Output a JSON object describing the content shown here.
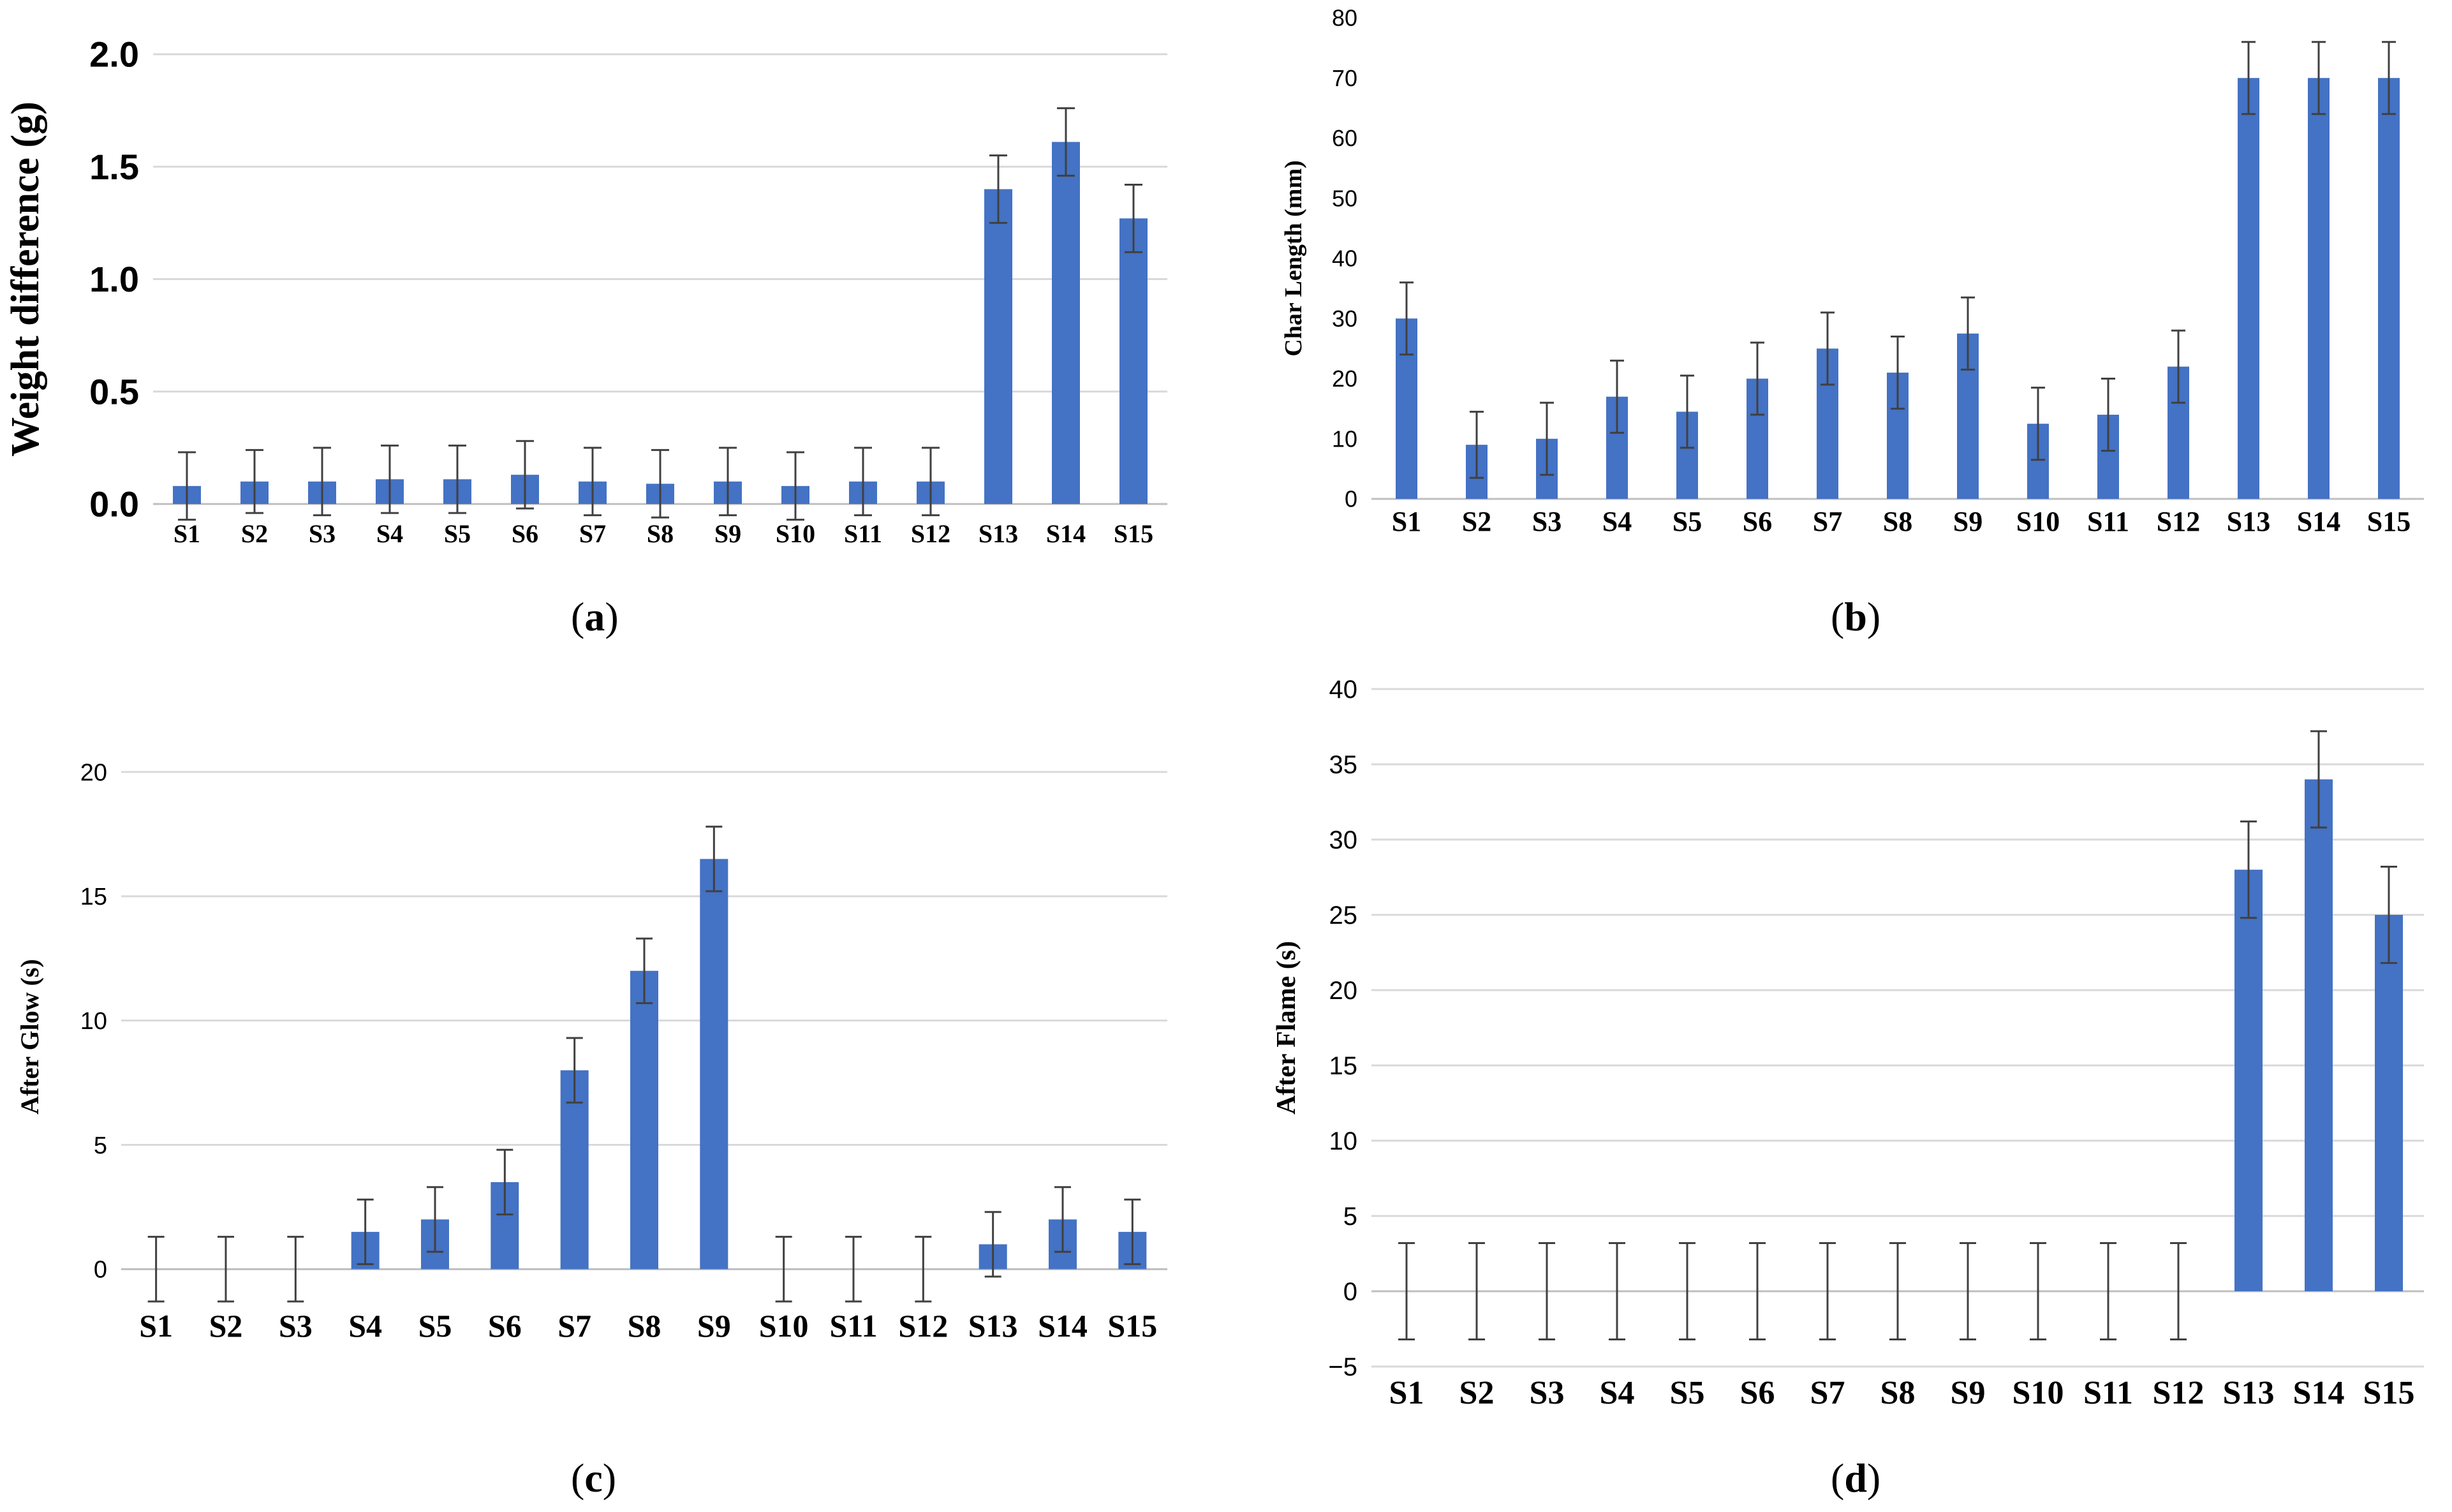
{
  "chart_data": [
    {
      "type": "bar",
      "panel_label": "a",
      "title": "",
      "xlabel": "",
      "ylabel": "Weight difference (g)",
      "categories": [
        "S1",
        "S2",
        "S3",
        "S4",
        "S5",
        "S6",
        "S7",
        "S8",
        "S9",
        "S10",
        "S11",
        "S12",
        "S13",
        "S14",
        "S15"
      ],
      "values": [
        0.08,
        0.1,
        0.1,
        0.11,
        0.11,
        0.13,
        0.1,
        0.09,
        0.1,
        0.08,
        0.1,
        0.1,
        1.4,
        1.61,
        1.27
      ],
      "error": [
        0.15,
        0.14,
        0.15,
        0.15,
        0.15,
        0.15,
        0.15,
        0.15,
        0.15,
        0.15,
        0.15,
        0.15,
        0.15,
        0.15,
        0.15
      ],
      "yticks": [
        "0.0",
        "0.5",
        "1.0",
        "1.5",
        "2.0"
      ],
      "ylim": [
        0,
        2.0
      ],
      "grid": true
    },
    {
      "type": "bar",
      "panel_label": "b",
      "title": "",
      "xlabel": "",
      "ylabel": "Char Length (mm)",
      "categories": [
        "S1",
        "S2",
        "S3",
        "S4",
        "S5",
        "S6",
        "S7",
        "S8",
        "S9",
        "S10",
        "S11",
        "S12",
        "S13",
        "S14",
        "S15"
      ],
      "values": [
        30,
        9,
        10,
        17,
        14.5,
        20,
        25,
        21,
        27.5,
        12.5,
        14,
        22,
        70,
        70,
        70
      ],
      "error": [
        6,
        5.5,
        6,
        6,
        6,
        6,
        6,
        6,
        6,
        6,
        6,
        6,
        6,
        6,
        6
      ],
      "yticks": [
        "0",
        "10",
        "20",
        "30",
        "40",
        "50",
        "60",
        "70",
        "80"
      ],
      "ylim": [
        0,
        80
      ],
      "grid": false
    },
    {
      "type": "bar",
      "panel_label": "c",
      "title": "",
      "xlabel": "",
      "ylabel": "After Glow (s)",
      "categories": [
        "S1",
        "S2",
        "S3",
        "S4",
        "S5",
        "S6",
        "S7",
        "S8",
        "S9",
        "S10",
        "S11",
        "S12",
        "S13",
        "S14",
        "S15"
      ],
      "values": [
        0,
        0,
        0,
        1.5,
        2,
        3.5,
        8,
        12,
        16.5,
        0,
        0,
        0,
        1,
        2,
        1.5
      ],
      "error": [
        1.3,
        1.3,
        1.3,
        1.3,
        1.3,
        1.3,
        1.3,
        1.3,
        1.3,
        1.3,
        1.3,
        1.3,
        1.3,
        1.3,
        1.3
      ],
      "yticks": [
        "0",
        "5",
        "10",
        "15",
        "20"
      ],
      "ylim": [
        -1.3,
        20
      ],
      "grid": true
    },
    {
      "type": "bar",
      "panel_label": "d",
      "title": "",
      "xlabel": "",
      "ylabel": "After Flame (s)",
      "categories": [
        "S1",
        "S2",
        "S3",
        "S4",
        "S5",
        "S6",
        "S7",
        "S8",
        "S9",
        "S10",
        "S11",
        "S12",
        "S13",
        "S14",
        "S15"
      ],
      "values": [
        0,
        0,
        0,
        0,
        0,
        0,
        0,
        0,
        0,
        0,
        0,
        0,
        28,
        34,
        25
      ],
      "error": [
        3.2,
        3.2,
        3.2,
        3.2,
        3.2,
        3.2,
        3.2,
        3.2,
        3.2,
        3.2,
        3.2,
        3.2,
        3.2,
        3.2,
        3.2
      ],
      "yticks": [
        "−5",
        "0",
        "5",
        "10",
        "15",
        "20",
        "25",
        "30",
        "35",
        "40"
      ],
      "ylim": [
        -5,
        40
      ],
      "grid": true
    }
  ]
}
